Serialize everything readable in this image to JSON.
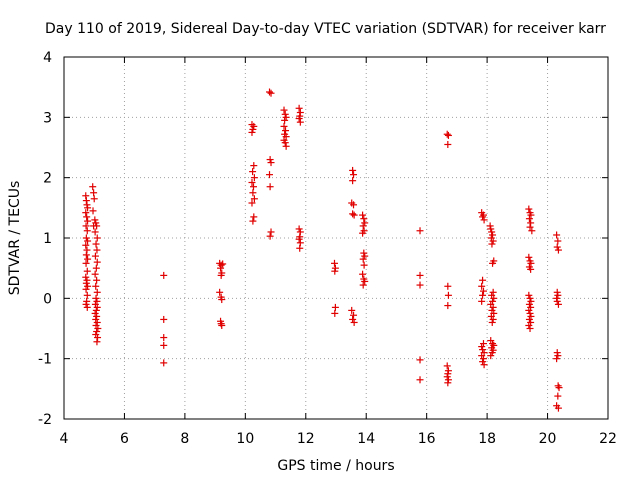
{
  "chart_data": {
    "type": "scatter",
    "title": "Day 110 of 2019, Sidereal Day-to-day VTEC variation (SDTVAR) for receiver karr",
    "xlabel": "GPS time / hours",
    "ylabel": "SDTVAR / TECUs",
    "xlim": [
      4,
      22
    ],
    "ylim": [
      -2,
      4
    ],
    "xticks": [
      "4",
      "6",
      "8",
      "10",
      "12",
      "14",
      "16",
      "18",
      "20",
      "22"
    ],
    "yticks": [
      "-2",
      "-1",
      "0",
      "1",
      "2",
      "3",
      "4"
    ],
    "grid": true,
    "marker": "plus",
    "color": "#e00000",
    "series": [
      {
        "name": "SDTVAR",
        "points": [
          [
            4.72,
            1.7
          ],
          [
            4.74,
            1.62
          ],
          [
            4.76,
            1.55
          ],
          [
            4.78,
            1.5
          ],
          [
            4.72,
            1.42
          ],
          [
            4.75,
            1.35
          ],
          [
            4.78,
            1.28
          ],
          [
            4.73,
            1.2
          ],
          [
            4.77,
            1.12
          ],
          [
            4.74,
            1.0
          ],
          [
            4.78,
            0.95
          ],
          [
            4.72,
            0.88
          ],
          [
            4.76,
            0.8
          ],
          [
            4.74,
            0.72
          ],
          [
            4.78,
            0.65
          ],
          [
            4.73,
            0.58
          ],
          [
            4.77,
            0.45
          ],
          [
            4.72,
            0.35
          ],
          [
            4.76,
            0.3
          ],
          [
            4.74,
            0.25
          ],
          [
            4.78,
            0.2
          ],
          [
            4.73,
            0.15
          ],
          [
            4.77,
            0.05
          ],
          [
            4.75,
            -0.05
          ],
          [
            4.73,
            -0.1
          ],
          [
            4.77,
            -0.15
          ],
          [
            4.95,
            1.85
          ],
          [
            4.98,
            1.75
          ],
          [
            5.0,
            1.65
          ],
          [
            4.96,
            1.45
          ],
          [
            5.02,
            1.3
          ],
          [
            4.98,
            1.2
          ],
          [
            5.03,
            1.1
          ],
          [
            5.05,
            1.25
          ],
          [
            5.08,
            1.2
          ],
          [
            5.1,
            1.0
          ],
          [
            5.06,
            0.9
          ],
          [
            5.09,
            0.8
          ],
          [
            5.04,
            0.7
          ],
          [
            5.1,
            0.6
          ],
          [
            5.07,
            0.5
          ],
          [
            5.03,
            0.4
          ],
          [
            5.08,
            0.3
          ],
          [
            5.05,
            0.2
          ],
          [
            5.1,
            0.1
          ],
          [
            5.06,
            0.0
          ],
          [
            5.09,
            -0.05
          ],
          [
            5.04,
            -0.1
          ],
          [
            5.1,
            -0.15
          ],
          [
            5.07,
            -0.2
          ],
          [
            5.03,
            -0.25
          ],
          [
            5.08,
            -0.3
          ],
          [
            5.05,
            -0.35
          ],
          [
            5.1,
            -0.4
          ],
          [
            5.06,
            -0.45
          ],
          [
            5.12,
            -0.5
          ],
          [
            5.08,
            -0.55
          ],
          [
            5.05,
            -0.6
          ],
          [
            5.11,
            -0.65
          ],
          [
            5.09,
            -0.72
          ],
          [
            7.3,
            0.38
          ],
          [
            7.3,
            -0.35
          ],
          [
            7.3,
            -0.65
          ],
          [
            7.3,
            -0.78
          ],
          [
            7.3,
            -1.07
          ],
          [
            9.15,
            0.58
          ],
          [
            9.2,
            0.55
          ],
          [
            9.25,
            0.57
          ],
          [
            9.18,
            0.5
          ],
          [
            9.22,
            0.42
          ],
          [
            9.2,
            0.38
          ],
          [
            9.15,
            0.1
          ],
          [
            9.2,
            0.02
          ],
          [
            9.22,
            -0.02
          ],
          [
            9.18,
            -0.38
          ],
          [
            9.2,
            -0.42
          ],
          [
            9.22,
            -0.45
          ],
          [
            10.22,
            2.88
          ],
          [
            10.28,
            2.85
          ],
          [
            10.25,
            2.8
          ],
          [
            10.22,
            2.75
          ],
          [
            10.28,
            2.2
          ],
          [
            10.24,
            2.1
          ],
          [
            10.3,
            2.0
          ],
          [
            10.22,
            1.92
          ],
          [
            10.27,
            1.85
          ],
          [
            10.25,
            1.75
          ],
          [
            10.3,
            1.65
          ],
          [
            10.22,
            1.58
          ],
          [
            10.28,
            1.35
          ],
          [
            10.25,
            1.28
          ],
          [
            10.8,
            3.42
          ],
          [
            10.85,
            3.4
          ],
          [
            10.82,
            2.3
          ],
          [
            10.85,
            2.25
          ],
          [
            10.8,
            2.05
          ],
          [
            10.82,
            1.85
          ],
          [
            10.85,
            1.1
          ],
          [
            10.82,
            1.03
          ],
          [
            11.28,
            3.12
          ],
          [
            11.32,
            3.05
          ],
          [
            11.35,
            3.0
          ],
          [
            11.3,
            2.95
          ],
          [
            11.28,
            2.85
          ],
          [
            11.33,
            2.78
          ],
          [
            11.3,
            2.72
          ],
          [
            11.35,
            2.68
          ],
          [
            11.28,
            2.62
          ],
          [
            11.32,
            2.58
          ],
          [
            11.35,
            2.52
          ],
          [
            11.78,
            3.15
          ],
          [
            11.82,
            3.08
          ],
          [
            11.8,
            3.02
          ],
          [
            11.78,
            2.98
          ],
          [
            11.82,
            2.92
          ],
          [
            11.78,
            1.15
          ],
          [
            11.82,
            1.1
          ],
          [
            11.8,
            1.02
          ],
          [
            11.78,
            0.98
          ],
          [
            11.82,
            0.92
          ],
          [
            11.8,
            0.83
          ],
          [
            12.95,
            0.58
          ],
          [
            12.98,
            0.5
          ],
          [
            12.96,
            0.45
          ],
          [
            12.98,
            -0.15
          ],
          [
            12.96,
            -0.25
          ],
          [
            13.55,
            2.12
          ],
          [
            13.58,
            2.05
          ],
          [
            13.55,
            1.95
          ],
          [
            13.52,
            1.58
          ],
          [
            13.58,
            1.55
          ],
          [
            13.55,
            1.4
          ],
          [
            13.6,
            1.38
          ],
          [
            13.52,
            -0.2
          ],
          [
            13.58,
            -0.28
          ],
          [
            13.55,
            -0.35
          ],
          [
            13.6,
            -0.4
          ],
          [
            13.88,
            1.38
          ],
          [
            13.92,
            1.32
          ],
          [
            13.95,
            1.25
          ],
          [
            13.9,
            1.2
          ],
          [
            13.93,
            1.12
          ],
          [
            13.88,
            1.08
          ],
          [
            13.92,
            0.75
          ],
          [
            13.95,
            0.7
          ],
          [
            13.9,
            0.65
          ],
          [
            13.93,
            0.55
          ],
          [
            13.88,
            0.4
          ],
          [
            13.92,
            0.32
          ],
          [
            13.95,
            0.28
          ],
          [
            13.9,
            0.22
          ],
          [
            15.78,
            1.12
          ],
          [
            15.78,
            0.38
          ],
          [
            15.78,
            0.22
          ],
          [
            15.78,
            -1.02
          ],
          [
            15.78,
            -1.35
          ],
          [
            16.68,
            2.72
          ],
          [
            16.72,
            2.7
          ],
          [
            16.7,
            2.55
          ],
          [
            16.7,
            0.2
          ],
          [
            16.72,
            0.05
          ],
          [
            16.7,
            -0.12
          ],
          [
            16.68,
            -1.12
          ],
          [
            16.72,
            -1.2
          ],
          [
            16.7,
            -1.25
          ],
          [
            16.68,
            -1.3
          ],
          [
            16.72,
            -1.35
          ],
          [
            16.7,
            -1.4
          ],
          [
            17.82,
            1.42
          ],
          [
            17.88,
            1.38
          ],
          [
            17.85,
            1.35
          ],
          [
            17.9,
            1.3
          ],
          [
            17.85,
            0.3
          ],
          [
            17.82,
            0.2
          ],
          [
            17.88,
            0.12
          ],
          [
            17.85,
            0.05
          ],
          [
            17.82,
            -0.05
          ],
          [
            17.88,
            -0.75
          ],
          [
            17.82,
            -0.8
          ],
          [
            17.85,
            -0.85
          ],
          [
            17.9,
            -0.9
          ],
          [
            17.82,
            -0.95
          ],
          [
            17.88,
            -1.0
          ],
          [
            17.85,
            -1.05
          ],
          [
            17.9,
            -1.1
          ],
          [
            18.1,
            1.2
          ],
          [
            18.12,
            1.15
          ],
          [
            18.15,
            1.1
          ],
          [
            18.18,
            1.05
          ],
          [
            18.14,
            1.0
          ],
          [
            18.2,
            0.95
          ],
          [
            18.16,
            0.9
          ],
          [
            18.22,
            0.62
          ],
          [
            18.18,
            0.58
          ],
          [
            18.2,
            0.1
          ],
          [
            18.15,
            0.05
          ],
          [
            18.22,
            0.0
          ],
          [
            18.18,
            -0.05
          ],
          [
            18.12,
            -0.1
          ],
          [
            18.2,
            -0.15
          ],
          [
            18.16,
            -0.2
          ],
          [
            18.22,
            -0.25
          ],
          [
            18.14,
            -0.3
          ],
          [
            18.2,
            -0.35
          ],
          [
            18.17,
            -0.4
          ],
          [
            18.12,
            -0.7
          ],
          [
            18.18,
            -0.75
          ],
          [
            18.22,
            -0.78
          ],
          [
            18.15,
            -0.82
          ],
          [
            18.2,
            -0.86
          ],
          [
            18.17,
            -0.9
          ],
          [
            18.12,
            -0.95
          ],
          [
            19.38,
            1.48
          ],
          [
            19.42,
            1.42
          ],
          [
            19.45,
            1.38
          ],
          [
            19.4,
            1.32
          ],
          [
            19.44,
            1.25
          ],
          [
            19.42,
            1.18
          ],
          [
            19.48,
            1.12
          ],
          [
            19.38,
            0.68
          ],
          [
            19.42,
            0.62
          ],
          [
            19.45,
            0.58
          ],
          [
            19.4,
            0.52
          ],
          [
            19.44,
            0.48
          ],
          [
            19.38,
            0.05
          ],
          [
            19.42,
            0.0
          ],
          [
            19.45,
            -0.05
          ],
          [
            19.4,
            -0.1
          ],
          [
            19.44,
            -0.15
          ],
          [
            19.38,
            -0.2
          ],
          [
            19.42,
            -0.25
          ],
          [
            19.45,
            -0.3
          ],
          [
            19.4,
            -0.35
          ],
          [
            19.44,
            -0.4
          ],
          [
            19.38,
            -0.45
          ],
          [
            19.42,
            -0.5
          ],
          [
            20.3,
            1.05
          ],
          [
            20.34,
            0.95
          ],
          [
            20.32,
            0.85
          ],
          [
            20.36,
            0.8
          ],
          [
            20.32,
            0.1
          ],
          [
            20.34,
            0.05
          ],
          [
            20.3,
            0.0
          ],
          [
            20.32,
            -0.05
          ],
          [
            20.36,
            -0.1
          ],
          [
            20.32,
            -0.9
          ],
          [
            20.34,
            -0.95
          ],
          [
            20.3,
            -1.0
          ],
          [
            20.35,
            -1.45
          ],
          [
            20.38,
            -1.48
          ],
          [
            20.34,
            -1.62
          ],
          [
            20.3,
            -1.78
          ],
          [
            20.36,
            -1.82
          ]
        ]
      }
    ]
  }
}
